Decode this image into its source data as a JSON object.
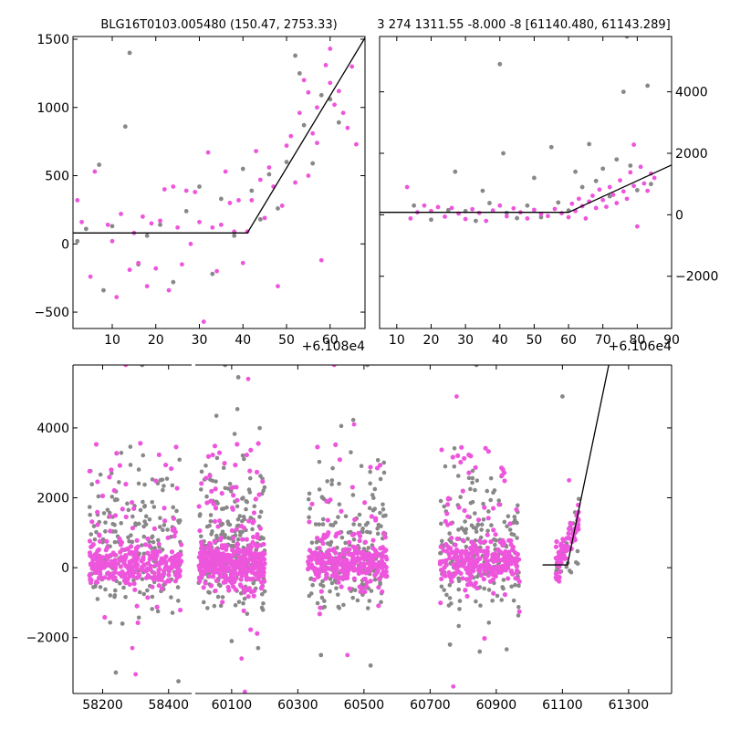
{
  "chart_data": [
    {
      "type": "scatter",
      "title": "BLG16T0103.005480 (150.47, 2753.33)",
      "x_offset_label": "+6.108e4",
      "xlim": [
        1,
        68
      ],
      "ylim": [
        -620,
        1520
      ],
      "xticks": [
        10,
        20,
        30,
        40,
        50,
        60
      ],
      "yticks": [
        -500,
        0,
        500,
        1000,
        1500
      ],
      "ytick_labels": [
        "−500",
        "0",
        "500",
        "1000",
        "1500"
      ],
      "model_line": [
        [
          1,
          80
        ],
        [
          41,
          80
        ],
        [
          68,
          1510
        ]
      ],
      "colors": {
        "primary": "#ee55dd",
        "secondary": "#888888"
      },
      "series": [
        {
          "color_key": "primary",
          "points": [
            [
              2,
              320
            ],
            [
              3,
              160
            ],
            [
              5,
              -240
            ],
            [
              6,
              530
            ],
            [
              9,
              140
            ],
            [
              10,
              20
            ],
            [
              11,
              -390
            ],
            [
              12,
              220
            ],
            [
              14,
              -190
            ],
            [
              15,
              80
            ],
            [
              16,
              -140
            ],
            [
              17,
              200
            ],
            [
              18,
              -310
            ],
            [
              19,
              150
            ],
            [
              20,
              -180
            ],
            [
              21,
              170
            ],
            [
              22,
              400
            ],
            [
              23,
              -340
            ],
            [
              24,
              420
            ],
            [
              25,
              120
            ],
            [
              26,
              -150
            ],
            [
              27,
              390
            ],
            [
              28,
              0
            ],
            [
              29,
              380
            ],
            [
              30,
              160
            ],
            [
              31,
              -570
            ],
            [
              32,
              670
            ],
            [
              33,
              120
            ],
            [
              34,
              -200
            ],
            [
              35,
              140
            ],
            [
              36,
              530
            ],
            [
              37,
              300
            ],
            [
              38,
              90
            ],
            [
              39,
              320
            ],
            [
              40,
              -140
            ],
            [
              41,
              90
            ],
            [
              42,
              320
            ],
            [
              43,
              680
            ],
            [
              44,
              470
            ],
            [
              45,
              190
            ],
            [
              46,
              560
            ],
            [
              47,
              420
            ],
            [
              48,
              -310
            ],
            [
              49,
              280
            ],
            [
              50,
              720
            ],
            [
              51,
              790
            ],
            [
              52,
              450
            ],
            [
              53,
              960
            ],
            [
              54,
              1200
            ],
            [
              55,
              1110
            ],
            [
              56,
              810
            ],
            [
              57,
              740
            ],
            [
              58,
              -120
            ],
            [
              59,
              1310
            ],
            [
              60,
              1180
            ],
            [
              61,
              1020
            ],
            [
              62,
              1120
            ],
            [
              63,
              960
            ],
            [
              64,
              850
            ],
            [
              65,
              1300
            ],
            [
              66,
              730
            ],
            [
              55,
              500
            ],
            [
              57,
              1000
            ],
            [
              60,
              1430
            ]
          ]
        },
        {
          "color_key": "secondary",
          "points": [
            [
              2,
              20
            ],
            [
              4,
              110
            ],
            [
              7,
              580
            ],
            [
              8,
              -340
            ],
            [
              10,
              130
            ],
            [
              13,
              860
            ],
            [
              14,
              1400
            ],
            [
              16,
              -150
            ],
            [
              18,
              60
            ],
            [
              21,
              140
            ],
            [
              24,
              -280
            ],
            [
              27,
              240
            ],
            [
              30,
              420
            ],
            [
              33,
              -220
            ],
            [
              35,
              330
            ],
            [
              38,
              60
            ],
            [
              40,
              550
            ],
            [
              42,
              390
            ],
            [
              44,
              180
            ],
            [
              46,
              510
            ],
            [
              48,
              260
            ],
            [
              50,
              600
            ],
            [
              52,
              1380
            ],
            [
              53,
              1250
            ],
            [
              54,
              870
            ],
            [
              56,
              590
            ],
            [
              58,
              1090
            ],
            [
              60,
              1060
            ],
            [
              62,
              890
            ]
          ]
        }
      ]
    },
    {
      "type": "scatter",
      "title": "3 274 1311.55 -8.000 -8 [61140.480, 61143.289]",
      "x_offset_label": "+6.106e4",
      "xlim": [
        5,
        90
      ],
      "ylim": [
        -3700,
        5800
      ],
      "xticks": [
        10,
        20,
        30,
        40,
        50,
        60,
        70,
        80,
        90
      ],
      "yticks": [
        -2000,
        0,
        2000,
        4000
      ],
      "ytick_labels": [
        "−2000",
        "0",
        "2000",
        "4000"
      ],
      "model_line": [
        [
          5,
          80
        ],
        [
          60,
          80
        ],
        [
          90,
          1620
        ]
      ],
      "colors": {
        "primary": "#ee55dd",
        "secondary": "#888888"
      },
      "series": [
        {
          "color_key": "primary",
          "points": [
            [
              13,
              900
            ],
            [
              14,
              -120
            ],
            [
              16,
              80
            ],
            [
              18,
              300
            ],
            [
              20,
              120
            ],
            [
              22,
              250
            ],
            [
              24,
              -60
            ],
            [
              26,
              220
            ],
            [
              28,
              40
            ],
            [
              30,
              -140
            ],
            [
              32,
              180
            ],
            [
              34,
              60
            ],
            [
              36,
              -200
            ],
            [
              38,
              140
            ],
            [
              40,
              300
            ],
            [
              42,
              -50
            ],
            [
              44,
              210
            ],
            [
              46,
              80
            ],
            [
              48,
              -120
            ],
            [
              50,
              160
            ],
            [
              52,
              20
            ],
            [
              54,
              -40
            ],
            [
              56,
              190
            ],
            [
              58,
              50
            ],
            [
              60,
              -80
            ],
            [
              61,
              360
            ],
            [
              62,
              120
            ],
            [
              63,
              520
            ],
            [
              64,
              280
            ],
            [
              65,
              -120
            ],
            [
              66,
              430
            ],
            [
              67,
              620
            ],
            [
              68,
              220
            ],
            [
              69,
              820
            ],
            [
              70,
              480
            ],
            [
              71,
              260
            ],
            [
              72,
              900
            ],
            [
              73,
              650
            ],
            [
              74,
              380
            ],
            [
              75,
              1120
            ],
            [
              76,
              760
            ],
            [
              77,
              520
            ],
            [
              78,
              1380
            ],
            [
              79,
              940
            ],
            [
              80,
              -380
            ],
            [
              81,
              1560
            ],
            [
              82,
              1020
            ],
            [
              83,
              780
            ],
            [
              84,
              1340
            ],
            [
              79,
              2280
            ],
            [
              85,
              1200
            ]
          ]
        },
        {
          "color_key": "secondary",
          "points": [
            [
              15,
              300
            ],
            [
              20,
              -160
            ],
            [
              25,
              150
            ],
            [
              27,
              1400
            ],
            [
              30,
              120
            ],
            [
              33,
              -200
            ],
            [
              35,
              780
            ],
            [
              37,
              380
            ],
            [
              40,
              4900
            ],
            [
              41,
              2000
            ],
            [
              42,
              60
            ],
            [
              45,
              -110
            ],
            [
              48,
              300
            ],
            [
              50,
              1200
            ],
            [
              52,
              -80
            ],
            [
              55,
              2200
            ],
            [
              57,
              400
            ],
            [
              60,
              140
            ],
            [
              62,
              1400
            ],
            [
              64,
              900
            ],
            [
              66,
              2300
            ],
            [
              68,
              1100
            ],
            [
              70,
              1500
            ],
            [
              72,
              600
            ],
            [
              74,
              1800
            ],
            [
              76,
              4000
            ],
            [
              77,
              5800
            ],
            [
              78,
              1600
            ],
            [
              80,
              800
            ],
            [
              83,
              4200
            ],
            [
              84,
              1000
            ]
          ]
        }
      ]
    },
    {
      "type": "scatter",
      "title": "",
      "xlim": [
        58110,
        61430
      ],
      "x_break": [
        58470,
        59990
      ],
      "ylim": [
        -3600,
        5800
      ],
      "xticks": [
        58200,
        58400,
        60100,
        60300,
        60500,
        60700,
        60900,
        61100,
        61300
      ],
      "yticks": [
        -2000,
        0,
        2000,
        4000
      ],
      "ytick_labels": [
        "−2000",
        "0",
        "2000",
        "4000"
      ],
      "model_line": [
        [
          61040,
          80
        ],
        [
          61115,
          80
        ],
        [
          61240,
          5800
        ]
      ],
      "colors": {
        "primary": "#ee55dd",
        "secondary": "#888888"
      },
      "clusters": [
        {
          "x_range": [
            58160,
            58440
          ],
          "n_primary": 340,
          "n_secondary": 200,
          "sigma_primary": 280,
          "outliers": [
            [
              58260,
              -1600
            ],
            [
              58290,
              -2300
            ],
            [
              58240,
              -3000
            ],
            [
              58300,
              -3050
            ],
            [
              58430,
              -3250
            ],
            [
              58270,
              5800
            ],
            [
              58320,
              5800
            ]
          ]
        },
        {
          "x_range": [
            60000,
            60200
          ],
          "n_primary": 380,
          "n_secondary": 240,
          "sigma_primary": 300,
          "outliers": [
            [
              60100,
              -2100
            ],
            [
              60130,
              -2600
            ],
            [
              60180,
              -2300
            ],
            [
              60140,
              -3550
            ],
            [
              60120,
              5450
            ],
            [
              60150,
              5400
            ],
            [
              60080,
              5800
            ]
          ]
        },
        {
          "x_range": [
            60330,
            60570
          ],
          "n_primary": 320,
          "n_secondary": 200,
          "sigma_primary": 290,
          "outliers": [
            [
              60370,
              -2500
            ],
            [
              60450,
              -2500
            ],
            [
              60520,
              -2800
            ],
            [
              60470,
              4100
            ],
            [
              60510,
              5800
            ],
            [
              60410,
              5800
            ]
          ]
        },
        {
          "x_range": [
            60730,
            60970
          ],
          "n_primary": 300,
          "n_secondary": 180,
          "sigma_primary": 280,
          "outliers": [
            [
              60760,
              -2200
            ],
            [
              60770,
              -3400
            ],
            [
              60850,
              -2400
            ],
            [
              60780,
              4900
            ],
            [
              60840,
              5800
            ]
          ]
        },
        {
          "x_range": [
            61080,
            61150
          ],
          "n_primary": 70,
          "n_secondary": 30,
          "sigma_primary": 200,
          "ramp": true,
          "outliers": [
            [
              61100,
              4900
            ],
            [
              61120,
              2500
            ]
          ]
        }
      ]
    }
  ]
}
